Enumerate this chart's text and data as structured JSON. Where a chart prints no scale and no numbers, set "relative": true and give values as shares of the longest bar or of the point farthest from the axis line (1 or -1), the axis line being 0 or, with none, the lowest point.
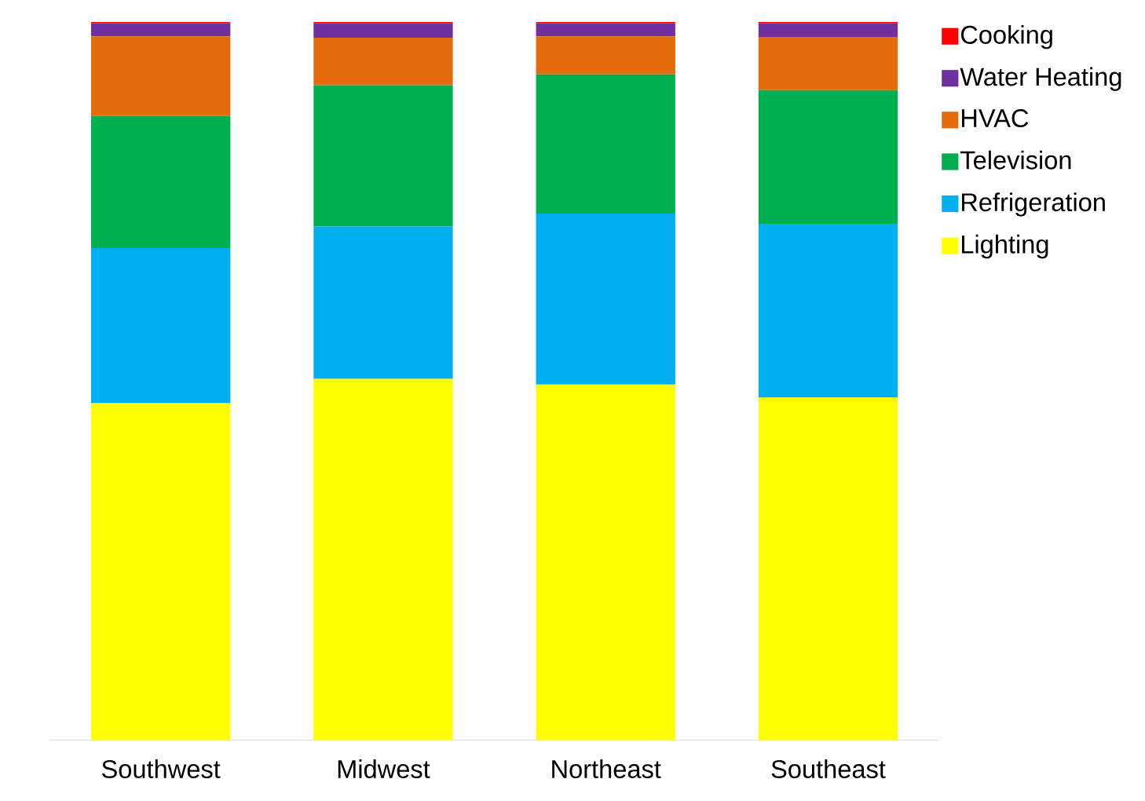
{
  "chart_data": {
    "type": "bar",
    "stacked": true,
    "relative": true,
    "legend": "right",
    "categories": [
      "Southwest",
      "Midwest",
      "Northeast",
      "Southeast"
    ],
    "series": [
      {
        "name": "Lighting",
        "color": "#ffff00",
        "values": [
          0.469,
          0.503,
          0.495,
          0.477
        ]
      },
      {
        "name": "Refrigeration",
        "color": "#00b0f0",
        "values": [
          0.216,
          0.212,
          0.238,
          0.242
        ]
      },
      {
        "name": "Television",
        "color": "#00b050",
        "values": [
          0.184,
          0.197,
          0.194,
          0.186
        ]
      },
      {
        "name": "HVAC",
        "color": "#e46c0a",
        "values": [
          0.111,
          0.066,
          0.053,
          0.074
        ]
      },
      {
        "name": "Water Heating",
        "color": "#7030a0",
        "values": [
          0.018,
          0.02,
          0.018,
          0.019
        ]
      },
      {
        "name": "Cooking",
        "color": "#ff0000",
        "values": [
          0.002,
          0.002,
          0.002,
          0.002
        ]
      }
    ]
  }
}
